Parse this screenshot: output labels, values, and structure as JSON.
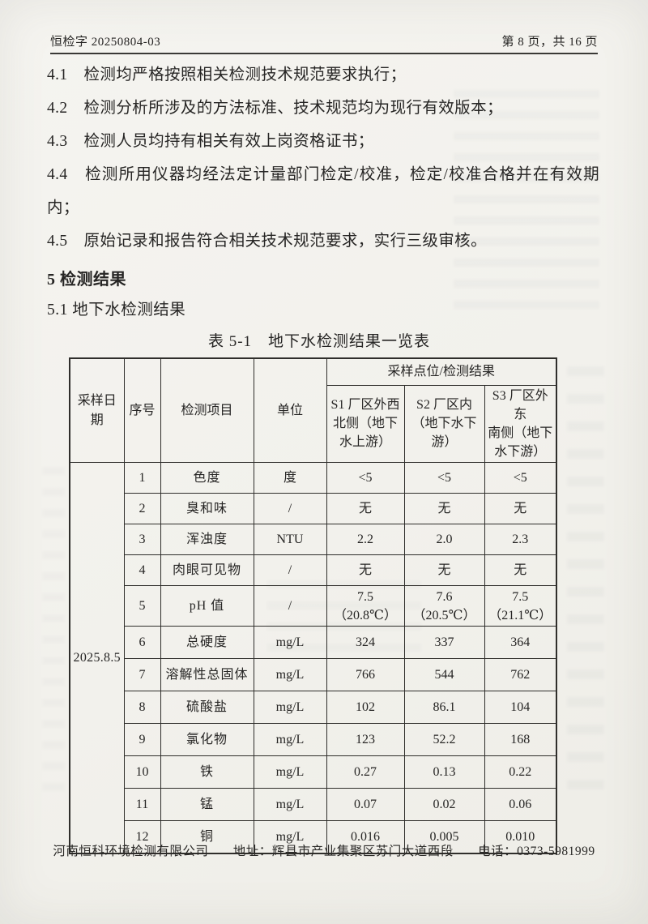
{
  "header": {
    "doc_code": "恒检字 20250804-03",
    "page_info": "第 8 页，共 16 页"
  },
  "clauses": [
    "4.1　检测均严格按照相关检测技术规范要求执行；",
    "4.2　检测分析所涉及的方法标准、技术规范均为现行有效版本；",
    "4.3　检测人员均持有相关有效上岗资格证书；",
    "4.4　检测所用仪器均经法定计量部门检定/校准，检定/校准合格并在有效期内；",
    "4.5　原始记录和报告符合相关技术规范要求，实行三级审核。"
  ],
  "section": {
    "title": "5 检测结果",
    "subtitle": "5.1 地下水检测结果"
  },
  "table": {
    "caption": "表 5-1　地下水检测结果一览表",
    "columns": {
      "date": "采样日期",
      "no": "序号",
      "item": "检测项目",
      "unit": "单位",
      "group": "采样点位/检测结果",
      "s1": "S1 厂区外西\n北侧（地下\n水上游）",
      "s2": "S2 厂区内\n（地下水下\n游）",
      "s3": "S3 厂区外东\n南侧（地下\n水下游）"
    },
    "sample_date": "2025.8.5",
    "rows": [
      {
        "no": "1",
        "item": "色度",
        "unit": "度",
        "s1": "<5",
        "s2": "<5",
        "s3": "<5"
      },
      {
        "no": "2",
        "item": "臭和味",
        "unit": "/",
        "s1": "无",
        "s2": "无",
        "s3": "无"
      },
      {
        "no": "3",
        "item": "浑浊度",
        "unit": "NTU",
        "s1": "2.2",
        "s2": "2.0",
        "s3": "2.3"
      },
      {
        "no": "4",
        "item": "肉眼可见物",
        "unit": "/",
        "s1": "无",
        "s2": "无",
        "s3": "无"
      },
      {
        "no": "5",
        "item": "pH 值",
        "unit": "/",
        "s1": "7.5\n（20.8℃）",
        "s2": "7.6\n（20.5℃）",
        "s3": "7.5\n（21.1℃）"
      },
      {
        "no": "6",
        "item": "总硬度",
        "unit": "mg/L",
        "s1": "324",
        "s2": "337",
        "s3": "364"
      },
      {
        "no": "7",
        "item": "溶解性总固体",
        "unit": "mg/L",
        "s1": "766",
        "s2": "544",
        "s3": "762"
      },
      {
        "no": "8",
        "item": "硫酸盐",
        "unit": "mg/L",
        "s1": "102",
        "s2": "86.1",
        "s3": "104"
      },
      {
        "no": "9",
        "item": "氯化物",
        "unit": "mg/L",
        "s1": "123",
        "s2": "52.2",
        "s3": "168"
      },
      {
        "no": "10",
        "item": "铁",
        "unit": "mg/L",
        "s1": "0.27",
        "s2": "0.13",
        "s3": "0.22"
      },
      {
        "no": "11",
        "item": "锰",
        "unit": "mg/L",
        "s1": "0.07",
        "s2": "0.02",
        "s3": "0.06"
      },
      {
        "no": "12",
        "item": "铜",
        "unit": "mg/L",
        "s1": "0.016",
        "s2": "0.005",
        "s3": "0.010"
      }
    ]
  },
  "footer": {
    "company": "河南恒科环境检测有限公司",
    "address": "地址：辉县市产业集聚区苏门大道西段",
    "phone": "电话：0373-5981999"
  }
}
